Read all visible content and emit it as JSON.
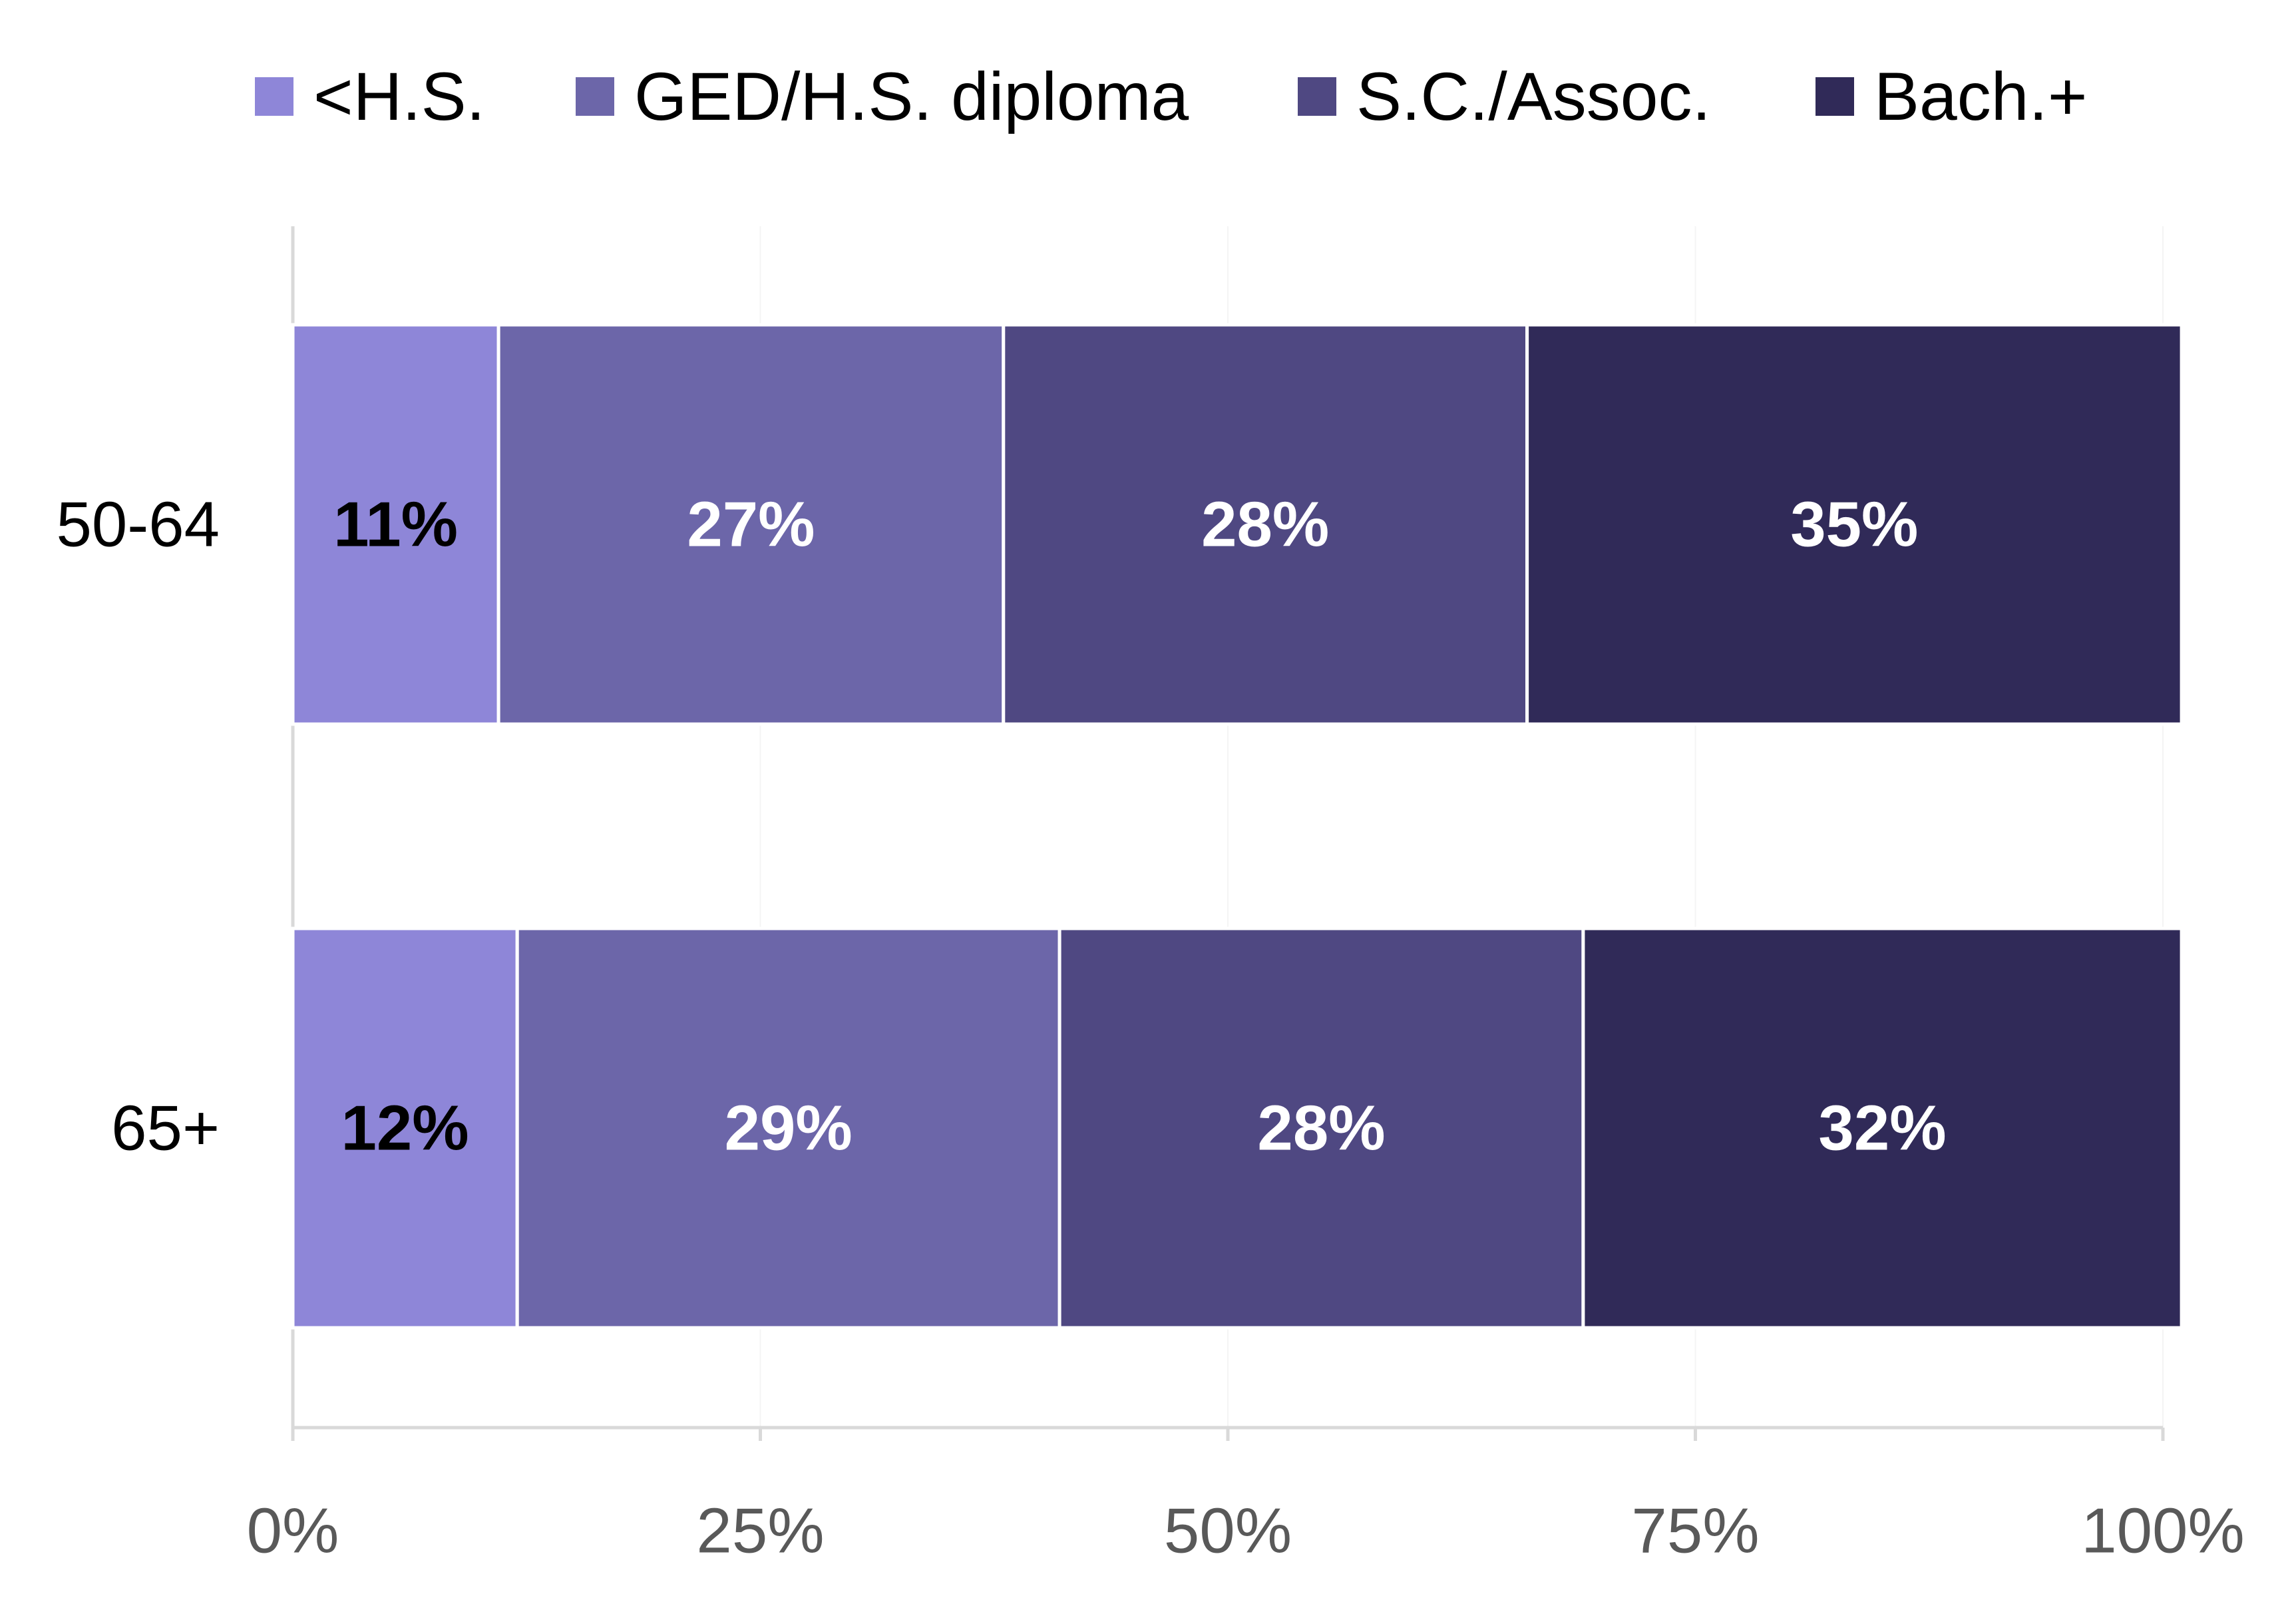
{
  "chart_data": {
    "type": "bar",
    "orientation": "horizontal",
    "stacked": true,
    "categories": [
      "50-64",
      "65+"
    ],
    "series": [
      {
        "name": "<H.S.",
        "values": [
          11,
          12
        ],
        "labels": [
          "11%",
          "12%"
        ],
        "color": "#8e86d8",
        "label_color": "#000000"
      },
      {
        "name": "GED/H.S. diploma",
        "values": [
          27,
          29
        ],
        "labels": [
          "27%",
          "29%"
        ],
        "color": "#6c66a9",
        "label_color": "#ffffff"
      },
      {
        "name": "S.C./Assoc.",
        "values": [
          28,
          28
        ],
        "labels": [
          "28%",
          "28%"
        ],
        "color": "#4f4882",
        "label_color": "#ffffff"
      },
      {
        "name": "Bach.+",
        "values": [
          35,
          32
        ],
        "labels": [
          "35%",
          "32%"
        ],
        "color": "#302a58",
        "label_color": "#ffffff"
      }
    ],
    "xlim": [
      0,
      100
    ],
    "x_ticks": [
      0,
      25,
      50,
      75,
      100
    ],
    "x_tick_labels": [
      "0%",
      "25%",
      "50%",
      "75%",
      "100%"
    ],
    "legend_position": "top",
    "grid": "vertical-faint",
    "axis_line_color": "#d9d9d9"
  }
}
